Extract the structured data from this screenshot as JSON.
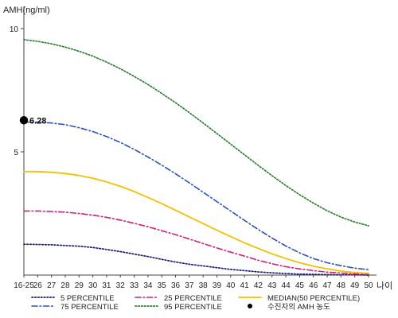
{
  "chart_data": {
    "type": "line",
    "title": "",
    "ylabel": "AMH(ng/ml)",
    "xlabel": "나이",
    "ylim": [
      0,
      10.9
    ],
    "yticks": [
      5,
      10
    ],
    "categories": [
      "16-25",
      "26",
      "27",
      "28",
      "29",
      "30",
      "31",
      "32",
      "33",
      "34",
      "35",
      "36",
      "37",
      "38",
      "39",
      "40",
      "41",
      "42",
      "43",
      "44",
      "45",
      "46",
      "47",
      "48",
      "49",
      "50"
    ],
    "series": [
      {
        "name": "5 PERCENTILE",
        "color": "#1a1a7a",
        "dash": "dot",
        "values": [
          1.25,
          1.24,
          1.23,
          1.2,
          1.17,
          1.12,
          1.04,
          0.95,
          0.85,
          0.75,
          0.64,
          0.53,
          0.44,
          0.37,
          0.3,
          0.23,
          0.18,
          0.13,
          0.09,
          0.06,
          0.04,
          0.03,
          0.02,
          0.01,
          0.01,
          0.0
        ]
      },
      {
        "name": "25 PERCENTILE",
        "color": "#d81b78",
        "dash": "dashdot",
        "values": [
          2.6,
          2.6,
          2.58,
          2.55,
          2.5,
          2.43,
          2.34,
          2.23,
          2.1,
          1.96,
          1.8,
          1.64,
          1.46,
          1.28,
          1.1,
          0.93,
          0.77,
          0.6,
          0.46,
          0.34,
          0.25,
          0.18,
          0.12,
          0.08,
          0.05,
          0.03
        ]
      },
      {
        "name": "MEDIAN(50 PERCENTILE)",
        "color": "#f2c200",
        "dash": "solid",
        "values": [
          4.2,
          4.2,
          4.17,
          4.12,
          4.04,
          3.93,
          3.78,
          3.6,
          3.39,
          3.15,
          2.9,
          2.63,
          2.36,
          2.09,
          1.82,
          1.56,
          1.31,
          1.08,
          0.86,
          0.67,
          0.5,
          0.36,
          0.25,
          0.16,
          0.1,
          0.07
        ]
      },
      {
        "name": "75 PERCENTILE",
        "color": "#2a52be",
        "dash": "dashdot",
        "values": [
          6.2,
          6.2,
          6.17,
          6.1,
          5.98,
          5.82,
          5.62,
          5.38,
          5.1,
          4.79,
          4.46,
          4.11,
          3.74,
          3.36,
          2.98,
          2.6,
          2.22,
          1.85,
          1.5,
          1.18,
          0.9,
          0.67,
          0.5,
          0.38,
          0.28,
          0.22
        ]
      },
      {
        "name": "95 PERCENTILE",
        "color": "#2e7d32",
        "dash": "dot",
        "values": [
          9.55,
          9.48,
          9.38,
          9.25,
          9.08,
          8.88,
          8.64,
          8.37,
          8.06,
          7.73,
          7.37,
          6.99,
          6.59,
          6.17,
          5.74,
          5.31,
          4.88,
          4.45,
          4.03,
          3.63,
          3.26,
          2.92,
          2.61,
          2.35,
          2.15,
          2.0
        ]
      }
    ],
    "patient": {
      "name": "수진자의 AMH 농도",
      "color": "#000000",
      "x_index": 0,
      "value": 6.28,
      "label": "6.28"
    },
    "legend_order": [
      "5 PERCENTILE",
      "25 PERCENTILE",
      "MEDIAN(50 PERCENTILE)",
      "75 PERCENTILE",
      "95 PERCENTILE",
      "수진자의 AMH 농도"
    ],
    "legend_position": "bottom",
    "grid": false
  }
}
